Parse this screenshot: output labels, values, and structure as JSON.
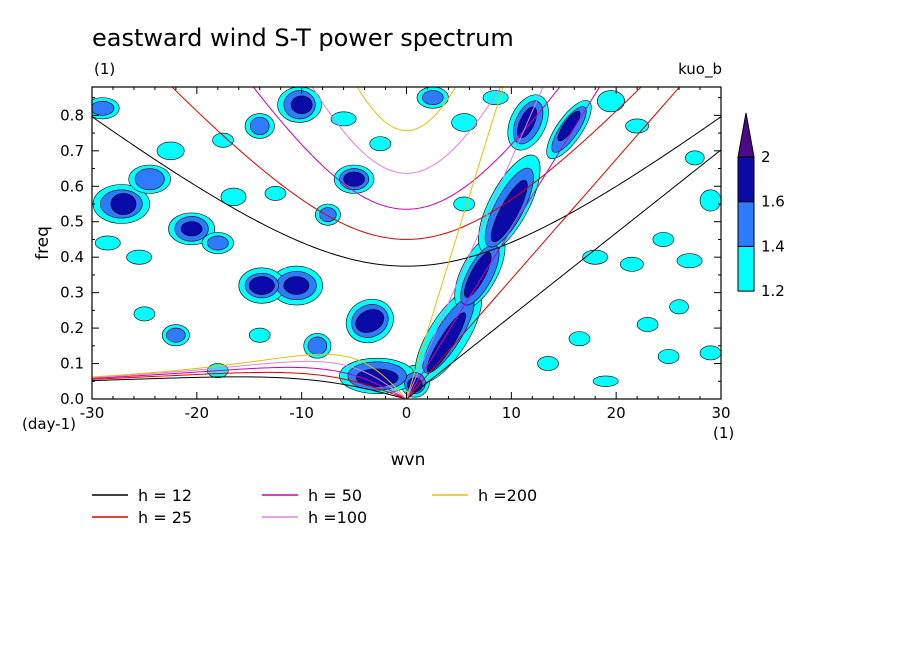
{
  "chart_data": {
    "type": "heatmap",
    "title": "eastward wind S-T power spectrum",
    "subtitle_left": "(1)",
    "subtitle_right": "kuo_b",
    "xlabel": "wvn",
    "ylabel": "freq",
    "x_unit": "(1)",
    "y_unit": "(day-1)",
    "xlim": [
      -30,
      30
    ],
    "ylim": [
      0.0,
      0.88
    ],
    "x_ticks": [
      -30,
      -20,
      -10,
      0,
      10,
      20,
      30
    ],
    "x_tick_labels": [
      "-30",
      "-20",
      "-10",
      "0",
      "10",
      "20",
      "30"
    ],
    "y_ticks": [
      0.0,
      0.1,
      0.2,
      0.3,
      0.4,
      0.5,
      0.6,
      0.7,
      0.8
    ],
    "y_tick_labels": [
      "0.0",
      "0.1",
      "0.2",
      "0.3",
      "0.4",
      "0.5",
      "0.6",
      "0.7",
      "0.8"
    ],
    "colorbar": {
      "levels": [
        1.2,
        1.4,
        1.6,
        2
      ],
      "level_labels": [
        "1.2",
        "1.4",
        "1.6",
        "2"
      ],
      "colors": [
        "#00ffff",
        "#2e7bff",
        "#0a0aa8",
        "#4b0a88"
      ]
    },
    "dispersion_curves": [
      {
        "label": "h = 12",
        "h": 12,
        "color": "#000000"
      },
      {
        "label": "h = 25",
        "h": 25,
        "color": "#e00000"
      },
      {
        "label": "h = 50",
        "h": 50,
        "color": "#d000b0"
      },
      {
        "label": "h =100",
        "h": 100,
        "color": "#e080e0"
      },
      {
        "label": "h =200",
        "h": 200,
        "color": "#e8c000"
      }
    ],
    "power_regions": [
      {
        "level": 1.6,
        "x": 0.8,
        "y": 0.04,
        "rx": 0.7,
        "ry": 0.02,
        "angle": 0
      },
      {
        "level": 1.6,
        "x": 3.8,
        "y": 0.16,
        "rx": 3.3,
        "ry": 0.02,
        "angle": 58
      },
      {
        "level": 1.6,
        "x": 6.8,
        "y": 0.35,
        "rx": 2.4,
        "ry": 0.02,
        "angle": 62
      },
      {
        "level": 1.6,
        "x": 9.8,
        "y": 0.53,
        "rx": 3.3,
        "ry": 0.025,
        "angle": 62
      },
      {
        "level": 1.6,
        "x": 11.5,
        "y": 0.78,
        "rx": 1.6,
        "ry": 0.02,
        "angle": 65
      },
      {
        "level": 1.6,
        "x": 15.5,
        "y": 0.77,
        "rx": 1.7,
        "ry": 0.015,
        "angle": 55
      },
      {
        "level": 1.6,
        "x": -2.8,
        "y": 0.06,
        "rx": 2.0,
        "ry": 0.025,
        "angle": 0
      },
      {
        "level": 1.6,
        "x": -3.5,
        "y": 0.22,
        "rx": 1.4,
        "ry": 0.03,
        "angle": 25
      },
      {
        "level": 1.6,
        "x": -10.5,
        "y": 0.32,
        "rx": 1.2,
        "ry": 0.025,
        "angle": 0
      },
      {
        "level": 1.6,
        "x": -13.8,
        "y": 0.32,
        "rx": 1.2,
        "ry": 0.025,
        "angle": 0
      },
      {
        "level": 1.6,
        "x": -10.0,
        "y": 0.83,
        "rx": 1.0,
        "ry": 0.025,
        "angle": 0
      },
      {
        "level": 1.6,
        "x": -5.0,
        "y": 0.62,
        "rx": 1.0,
        "ry": 0.02,
        "angle": 0
      },
      {
        "level": 1.6,
        "x": -27.0,
        "y": 0.55,
        "rx": 1.2,
        "ry": 0.03,
        "angle": 0
      },
      {
        "level": 1.6,
        "x": -20.5,
        "y": 0.48,
        "rx": 1.0,
        "ry": 0.02,
        "angle": 0
      },
      {
        "level": 1.4,
        "x": 0.8,
        "y": 0.045,
        "rx": 1.0,
        "ry": 0.03,
        "angle": 0
      },
      {
        "level": 1.4,
        "x": 4.0,
        "y": 0.18,
        "rx": 4.2,
        "ry": 0.035,
        "angle": 58
      },
      {
        "level": 1.4,
        "x": 7.0,
        "y": 0.35,
        "rx": 3.2,
        "ry": 0.035,
        "angle": 62
      },
      {
        "level": 1.4,
        "x": 9.8,
        "y": 0.54,
        "rx": 4.2,
        "ry": 0.04,
        "angle": 62
      },
      {
        "level": 1.4,
        "x": 11.6,
        "y": 0.78,
        "rx": 2.2,
        "ry": 0.035,
        "angle": 65
      },
      {
        "level": 1.4,
        "x": 15.5,
        "y": 0.76,
        "rx": 2.6,
        "ry": 0.025,
        "angle": 55
      },
      {
        "level": 1.4,
        "x": -2.8,
        "y": 0.065,
        "rx": 2.8,
        "ry": 0.04,
        "angle": 0
      },
      {
        "level": 1.4,
        "x": -3.5,
        "y": 0.22,
        "rx": 1.8,
        "ry": 0.045,
        "angle": 25
      },
      {
        "level": 1.4,
        "x": -8.5,
        "y": 0.15,
        "rx": 0.9,
        "ry": 0.025,
        "angle": 0
      },
      {
        "level": 1.4,
        "x": -10.5,
        "y": 0.32,
        "rx": 1.9,
        "ry": 0.04,
        "angle": 0
      },
      {
        "level": 1.4,
        "x": -13.8,
        "y": 0.32,
        "rx": 1.6,
        "ry": 0.035,
        "angle": 0
      },
      {
        "level": 1.4,
        "x": -10.2,
        "y": 0.83,
        "rx": 1.5,
        "ry": 0.04,
        "angle": 0
      },
      {
        "level": 1.4,
        "x": -5.0,
        "y": 0.62,
        "rx": 1.4,
        "ry": 0.03,
        "angle": 0
      },
      {
        "level": 1.4,
        "x": -27.2,
        "y": 0.55,
        "rx": 2.0,
        "ry": 0.04,
        "angle": 0
      },
      {
        "level": 1.4,
        "x": -24.5,
        "y": 0.62,
        "rx": 1.4,
        "ry": 0.03,
        "angle": 0
      },
      {
        "level": 1.4,
        "x": -20.5,
        "y": 0.48,
        "rx": 1.6,
        "ry": 0.035,
        "angle": 0
      },
      {
        "level": 1.4,
        "x": -14.0,
        "y": 0.77,
        "rx": 0.9,
        "ry": 0.025,
        "angle": 0
      },
      {
        "level": 1.4,
        "x": -18.0,
        "y": 0.44,
        "rx": 1.0,
        "ry": 0.02,
        "angle": 0
      },
      {
        "level": 1.4,
        "x": -29.0,
        "y": 0.82,
        "rx": 1.1,
        "ry": 0.02,
        "angle": 0
      },
      {
        "level": 1.4,
        "x": -7.5,
        "y": 0.52,
        "rx": 0.8,
        "ry": 0.02,
        "angle": 0
      },
      {
        "level": 1.4,
        "x": -22.0,
        "y": 0.18,
        "rx": 0.9,
        "ry": 0.02,
        "angle": 0
      },
      {
        "level": 1.4,
        "x": 2.5,
        "y": 0.85,
        "rx": 1.0,
        "ry": 0.02,
        "angle": 0
      },
      {
        "level": 1.2,
        "x": 0.8,
        "y": 0.05,
        "rx": 1.4,
        "ry": 0.045,
        "angle": 0
      },
      {
        "level": 1.2,
        "x": 4.0,
        "y": 0.18,
        "rx": 5.2,
        "ry": 0.055,
        "angle": 58
      },
      {
        "level": 1.2,
        "x": 7.0,
        "y": 0.36,
        "rx": 4.0,
        "ry": 0.05,
        "angle": 62
      },
      {
        "level": 1.2,
        "x": 9.8,
        "y": 0.55,
        "rx": 5.2,
        "ry": 0.055,
        "angle": 62
      },
      {
        "level": 1.2,
        "x": 11.6,
        "y": 0.78,
        "rx": 2.8,
        "ry": 0.05,
        "angle": 65
      },
      {
        "level": 1.2,
        "x": 15.5,
        "y": 0.76,
        "rx": 3.3,
        "ry": 0.035,
        "angle": 55
      },
      {
        "level": 1.2,
        "x": -2.8,
        "y": 0.065,
        "rx": 3.6,
        "ry": 0.05,
        "angle": 0
      },
      {
        "level": 1.2,
        "x": -3.5,
        "y": 0.22,
        "rx": 2.3,
        "ry": 0.06,
        "angle": 25
      },
      {
        "level": 1.2,
        "x": -8.5,
        "y": 0.15,
        "rx": 1.3,
        "ry": 0.035,
        "angle": 0
      },
      {
        "level": 1.2,
        "x": -10.5,
        "y": 0.32,
        "rx": 2.5,
        "ry": 0.055,
        "angle": 0
      },
      {
        "level": 1.2,
        "x": -13.8,
        "y": 0.32,
        "rx": 2.2,
        "ry": 0.05,
        "angle": 0
      },
      {
        "level": 1.2,
        "x": -10.2,
        "y": 0.83,
        "rx": 2.1,
        "ry": 0.05,
        "angle": 0
      },
      {
        "level": 1.2,
        "x": -5.0,
        "y": 0.62,
        "rx": 1.9,
        "ry": 0.04,
        "angle": 0
      },
      {
        "level": 1.2,
        "x": -27.2,
        "y": 0.55,
        "rx": 2.7,
        "ry": 0.055,
        "angle": 0
      },
      {
        "level": 1.2,
        "x": -24.5,
        "y": 0.62,
        "rx": 2.0,
        "ry": 0.04,
        "angle": 0
      },
      {
        "level": 1.2,
        "x": -20.5,
        "y": 0.48,
        "rx": 2.2,
        "ry": 0.045,
        "angle": 0
      },
      {
        "level": 1.2,
        "x": -14.0,
        "y": 0.77,
        "rx": 1.4,
        "ry": 0.035,
        "angle": 0
      },
      {
        "level": 1.2,
        "x": -18.0,
        "y": 0.44,
        "rx": 1.5,
        "ry": 0.03,
        "angle": 0
      },
      {
        "level": 1.2,
        "x": -29.0,
        "y": 0.82,
        "rx": 1.6,
        "ry": 0.03,
        "angle": 0
      },
      {
        "level": 1.2,
        "x": -7.5,
        "y": 0.52,
        "rx": 1.2,
        "ry": 0.03,
        "angle": 0
      },
      {
        "level": 1.2,
        "x": -22.0,
        "y": 0.18,
        "rx": 1.3,
        "ry": 0.03,
        "angle": 0
      },
      {
        "level": 1.2,
        "x": 2.5,
        "y": 0.85,
        "rx": 1.5,
        "ry": 0.03,
        "angle": 0
      },
      {
        "level": 1.2,
        "x": -16.5,
        "y": 0.57,
        "rx": 1.2,
        "ry": 0.025,
        "angle": 0
      },
      {
        "level": 1.2,
        "x": -22.5,
        "y": 0.7,
        "rx": 1.3,
        "ry": 0.025,
        "angle": 0
      },
      {
        "level": 1.2,
        "x": -25.5,
        "y": 0.4,
        "rx": 1.2,
        "ry": 0.02,
        "angle": 0
      },
      {
        "level": 1.2,
        "x": -28.5,
        "y": 0.44,
        "rx": 1.2,
        "ry": 0.02,
        "angle": 0
      },
      {
        "level": 1.2,
        "x": -12.5,
        "y": 0.58,
        "rx": 1.0,
        "ry": 0.02,
        "angle": 0
      },
      {
        "level": 1.2,
        "x": -17.5,
        "y": 0.73,
        "rx": 1.0,
        "ry": 0.02,
        "angle": 0
      },
      {
        "level": 1.2,
        "x": -6.0,
        "y": 0.79,
        "rx": 1.2,
        "ry": 0.02,
        "angle": 0
      },
      {
        "level": 1.2,
        "x": -2.5,
        "y": 0.72,
        "rx": 1.0,
        "ry": 0.02,
        "angle": 0
      },
      {
        "level": 1.2,
        "x": -25.0,
        "y": 0.24,
        "rx": 1.0,
        "ry": 0.02,
        "angle": 0
      },
      {
        "level": 1.2,
        "x": -18.0,
        "y": 0.08,
        "rx": 1.0,
        "ry": 0.02,
        "angle": 0
      },
      {
        "level": 1.2,
        "x": -14.0,
        "y": 0.18,
        "rx": 1.0,
        "ry": 0.02,
        "angle": 0
      },
      {
        "level": 1.2,
        "x": 5.5,
        "y": 0.78,
        "rx": 1.2,
        "ry": 0.025,
        "angle": 0
      },
      {
        "level": 1.2,
        "x": 8.5,
        "y": 0.85,
        "rx": 1.2,
        "ry": 0.02,
        "angle": 0
      },
      {
        "level": 1.2,
        "x": 19.5,
        "y": 0.84,
        "rx": 1.3,
        "ry": 0.03,
        "angle": 0
      },
      {
        "level": 1.2,
        "x": 22.0,
        "y": 0.77,
        "rx": 1.1,
        "ry": 0.02,
        "angle": 0
      },
      {
        "level": 1.2,
        "x": 18.0,
        "y": 0.4,
        "rx": 1.2,
        "ry": 0.02,
        "angle": 0
      },
      {
        "level": 1.2,
        "x": 21.5,
        "y": 0.38,
        "rx": 1.1,
        "ry": 0.02,
        "angle": 0
      },
      {
        "level": 1.2,
        "x": 24.5,
        "y": 0.45,
        "rx": 1.0,
        "ry": 0.02,
        "angle": 0
      },
      {
        "level": 1.2,
        "x": 27.0,
        "y": 0.39,
        "rx": 1.2,
        "ry": 0.02,
        "angle": 0
      },
      {
        "level": 1.2,
        "x": 29.0,
        "y": 0.56,
        "rx": 1.0,
        "ry": 0.03,
        "angle": 0
      },
      {
        "level": 1.2,
        "x": 27.5,
        "y": 0.68,
        "rx": 0.9,
        "ry": 0.02,
        "angle": 0
      },
      {
        "level": 1.2,
        "x": 23.0,
        "y": 0.21,
        "rx": 1.0,
        "ry": 0.02,
        "angle": 0
      },
      {
        "level": 1.2,
        "x": 25.0,
        "y": 0.12,
        "rx": 1.0,
        "ry": 0.02,
        "angle": 0
      },
      {
        "level": 1.2,
        "x": 19.0,
        "y": 0.05,
        "rx": 1.2,
        "ry": 0.015,
        "angle": 0
      },
      {
        "level": 1.2,
        "x": 29.0,
        "y": 0.13,
        "rx": 1.0,
        "ry": 0.02,
        "angle": 0
      },
      {
        "level": 1.2,
        "x": 13.5,
        "y": 0.1,
        "rx": 1.0,
        "ry": 0.02,
        "angle": 0
      },
      {
        "level": 1.2,
        "x": 16.5,
        "y": 0.17,
        "rx": 1.0,
        "ry": 0.02,
        "angle": 0
      },
      {
        "level": 1.2,
        "x": 26.0,
        "y": 0.26,
        "rx": 0.9,
        "ry": 0.02,
        "angle": 0
      },
      {
        "level": 1.2,
        "x": 5.5,
        "y": 0.55,
        "rx": 1.0,
        "ry": 0.02,
        "angle": 0
      }
    ]
  }
}
